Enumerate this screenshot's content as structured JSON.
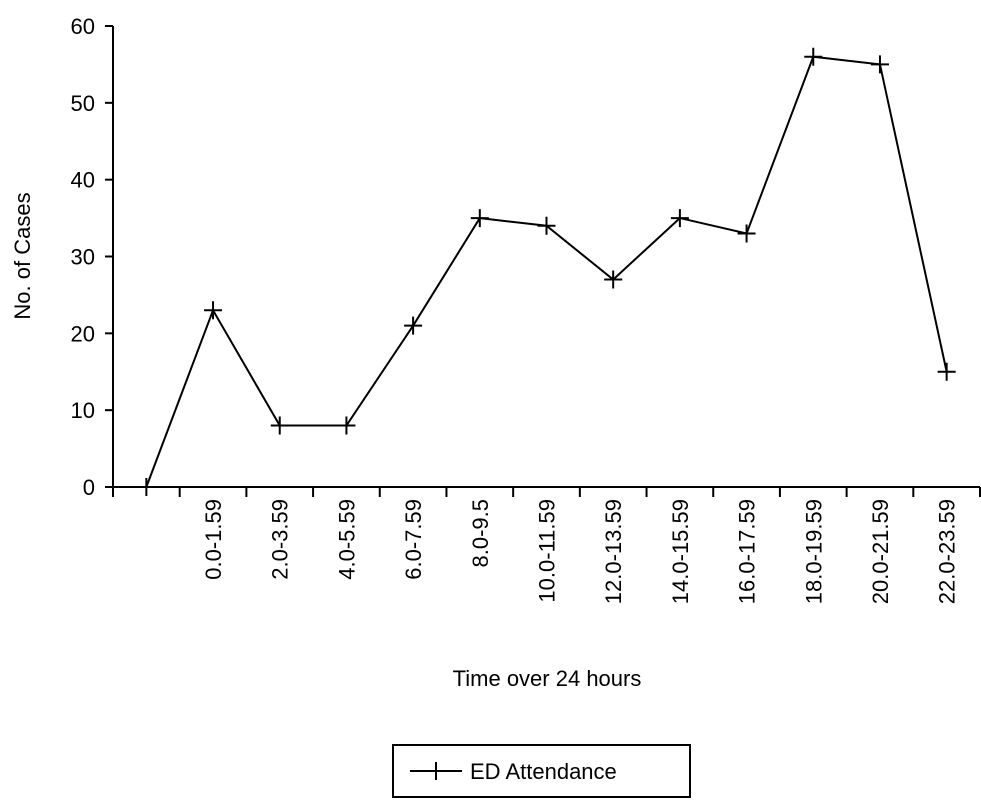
{
  "chart_data": {
    "type": "line",
    "x_label": "Time over 24 hours",
    "y_label": "No. of Cases",
    "categories": [
      null,
      "0.0-1.59",
      "2.0-3.59",
      "4.0-5.59",
      "6.0-7.59",
      "8.0-9.5",
      "10.0-11.59",
      "12.0-13.59",
      "14.0-15.59",
      "16.0-17.59",
      "18.0-19.59",
      "20.0-21.59",
      "22.0-23.59"
    ],
    "series": [
      {
        "name": "ED Attendance",
        "color": "#000000",
        "values": [
          0,
          23,
          8,
          8,
          21,
          35,
          34,
          27,
          35,
          33,
          56,
          55,
          15
        ]
      }
    ],
    "ylim": [
      0,
      60
    ],
    "yticks": [
      0,
      10,
      20,
      30,
      40,
      50,
      60
    ],
    "legend": "bottom"
  }
}
